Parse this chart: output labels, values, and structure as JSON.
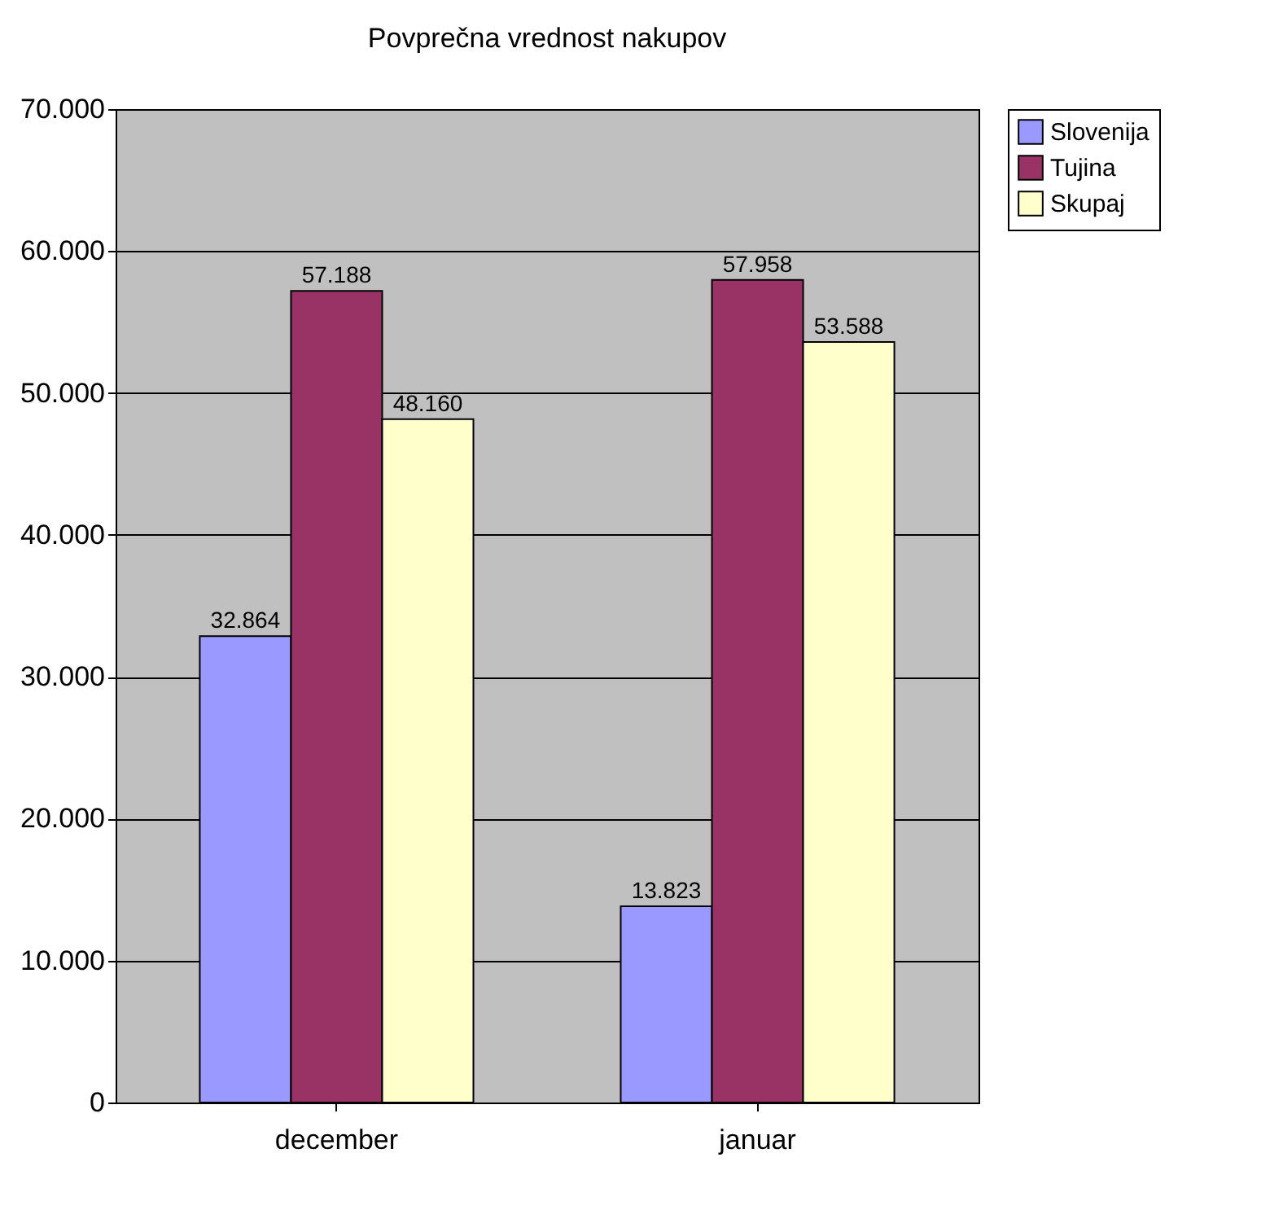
{
  "chart_data": {
    "type": "bar",
    "title": "Povprečna vrednost nakupov",
    "categories": [
      "december",
      "januar"
    ],
    "series": [
      {
        "name": "Slovenija",
        "color": "#9999ff",
        "values": [
          32864,
          13823
        ],
        "value_labels": [
          "32.864",
          "13.823"
        ]
      },
      {
        "name": "Tujina",
        "color": "#993366",
        "values": [
          57188,
          57958
        ],
        "value_labels": [
          "57.188",
          "57.958"
        ]
      },
      {
        "name": "Skupaj",
        "color": "#ffffcc",
        "values": [
          48160,
          53588
        ],
        "value_labels": [
          "48.160",
          "53.588"
        ]
      }
    ],
    "ylim": [
      0,
      70000
    ],
    "yticks": [
      0,
      {
        "value": 10000,
        "label": "10.000"
      },
      {
        "value": 20000,
        "label": "20.000"
      },
      {
        "value": 30000,
        "label": "30.000"
      },
      {
        "value": 40000,
        "label": "40.000"
      },
      {
        "value": 50000,
        "label": "50.000"
      },
      {
        "value": 60000,
        "label": "60.000"
      },
      {
        "value": 70000,
        "label": "70.000"
      }
    ],
    "grid": "y",
    "legend": "right"
  }
}
